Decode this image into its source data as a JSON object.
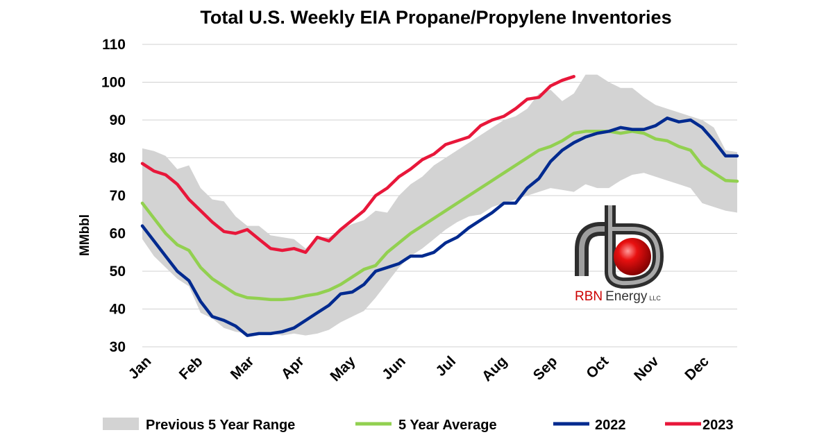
{
  "chart_data": {
    "type": "line",
    "title": "Total U.S. Weekly EIA Propane/Propylene Inventories",
    "ylabel": "MMbbl",
    "ylim": [
      30,
      110
    ],
    "yticks": [
      30,
      40,
      50,
      60,
      70,
      80,
      90,
      100,
      110
    ],
    "xlim": [
      1,
      52
    ],
    "month_labels": [
      "Jan",
      "Feb",
      "Mar",
      "Apr",
      "May",
      "Jun",
      "Jul",
      "Aug",
      "Sep",
      "Oct",
      "Nov",
      "Dec"
    ],
    "month_weeks": [
      1,
      5.4,
      9.8,
      14.1,
      18.5,
      22.8,
      27.1,
      31.5,
      35.8,
      40.2,
      44.5,
      48.8
    ],
    "grid": true,
    "legend_position": "bottom",
    "range": {
      "name": "Previous 5 Year Range",
      "color": "#d3d3d3",
      "weeks": [
        1,
        2,
        3,
        4,
        5,
        6,
        7,
        8,
        9,
        10,
        11,
        12,
        13,
        14,
        15,
        16,
        17,
        18,
        19,
        20,
        21,
        22,
        23,
        24,
        25,
        26,
        27,
        28,
        29,
        30,
        31,
        32,
        33,
        34,
        35,
        36,
        37,
        38,
        39,
        40,
        41,
        42,
        43,
        44,
        45,
        46,
        47,
        48,
        49,
        50,
        51,
        52
      ],
      "upper": [
        82.5,
        81.8,
        80.5,
        77,
        78,
        72,
        69,
        68.5,
        64.5,
        62,
        62,
        59.5,
        59,
        58.5,
        56,
        59,
        59,
        61,
        62.5,
        63.5,
        66,
        65.5,
        70,
        73,
        75,
        78,
        80,
        82,
        84,
        86,
        88,
        90,
        91,
        93,
        97,
        98,
        95,
        97,
        102,
        102,
        100,
        98.5,
        98.5,
        96,
        94,
        93,
        92,
        91,
        90,
        88,
        82,
        81.5
      ],
      "lower": [
        58.5,
        54,
        51,
        48,
        46,
        39,
        37.5,
        35,
        34,
        33.5,
        33.5,
        33.5,
        33,
        33.5,
        33,
        33.5,
        34.5,
        36.5,
        38,
        39.5,
        43,
        47,
        51,
        54,
        56,
        58.5,
        61,
        63,
        64.5,
        65,
        67,
        68,
        69,
        70,
        71,
        72,
        71.5,
        71,
        73,
        72,
        72,
        74,
        75.5,
        76,
        75,
        74,
        73,
        72,
        68,
        67,
        66,
        65.5
      ]
    },
    "series": [
      {
        "name": "5 Year Average",
        "color": "#92d050",
        "weeks": [
          1,
          2,
          3,
          4,
          5,
          6,
          7,
          8,
          9,
          10,
          11,
          12,
          13,
          14,
          15,
          16,
          17,
          18,
          19,
          20,
          21,
          22,
          23,
          24,
          25,
          26,
          27,
          28,
          29,
          30,
          31,
          32,
          33,
          34,
          35,
          36,
          37,
          38,
          39,
          40,
          41,
          42,
          43,
          44,
          45,
          46,
          47,
          48,
          49,
          50,
          51,
          52
        ],
        "values": [
          68,
          64,
          60,
          57,
          55.5,
          51,
          48,
          46,
          44,
          43,
          42.8,
          42.5,
          42.5,
          42.8,
          43.5,
          44,
          45,
          46.5,
          48.5,
          50.5,
          51.5,
          55,
          57.5,
          60,
          62,
          64,
          66,
          68,
          70,
          72,
          74,
          76,
          78,
          80,
          82,
          83,
          84.5,
          86.5,
          87,
          87,
          87,
          86.5,
          87,
          86.5,
          85,
          84.5,
          83,
          82,
          78,
          76,
          74,
          73.8
        ]
      },
      {
        "name": "2022",
        "color": "#002a8f",
        "weeks": [
          1,
          2,
          3,
          4,
          5,
          6,
          7,
          8,
          9,
          10,
          11,
          12,
          13,
          14,
          15,
          16,
          17,
          18,
          19,
          20,
          21,
          22,
          23,
          24,
          25,
          26,
          27,
          28,
          29,
          30,
          31,
          32,
          33,
          34,
          35,
          36,
          37,
          38,
          39,
          40,
          41,
          42,
          43,
          44,
          45,
          46,
          47,
          48,
          49,
          50,
          51,
          52
        ],
        "values": [
          62,
          58,
          54,
          50,
          47.5,
          42,
          38,
          37,
          35.5,
          33,
          33.5,
          33.5,
          34,
          35,
          37,
          39,
          41,
          44,
          44.5,
          46.5,
          50,
          51,
          52,
          54,
          54,
          55,
          57.5,
          59,
          61.5,
          63.5,
          65.5,
          68,
          68,
          72,
          74.5,
          79,
          82,
          84,
          85.5,
          86.5,
          87,
          88,
          87.5,
          87.5,
          88.5,
          90.5,
          89.5,
          90,
          88,
          84.5,
          80.5,
          80.5
        ]
      },
      {
        "name": "2023",
        "color": "#e8173a",
        "weeks": [
          1,
          2,
          3,
          4,
          5,
          6,
          7,
          8,
          9,
          10,
          11,
          12,
          13,
          14,
          15,
          16,
          17,
          18,
          19,
          20,
          21,
          22,
          23,
          24,
          25,
          26,
          27,
          28,
          29,
          30,
          31,
          32,
          33,
          34,
          35,
          36,
          37,
          38
        ],
        "values": [
          78.5,
          76.5,
          75.5,
          73,
          69,
          66,
          63,
          60.5,
          60,
          61,
          58.5,
          56,
          55.5,
          56,
          55,
          59,
          58,
          61,
          63.5,
          66,
          70,
          72,
          75,
          77,
          79.5,
          81,
          83.5,
          84.5,
          85.5,
          88.5,
          90,
          91,
          93,
          95.5,
          96,
          99,
          100.5,
          101.5
        ]
      }
    ]
  },
  "logo": {
    "letters": "rb",
    "brand": "RBN",
    "word": "Energy",
    "suffix": "LLC"
  }
}
